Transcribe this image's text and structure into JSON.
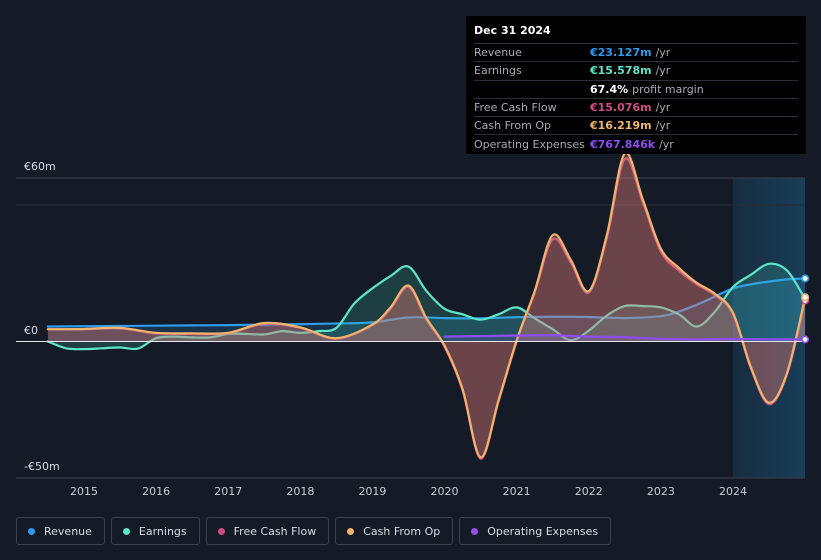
{
  "chart_data": {
    "type": "area",
    "title": "",
    "ylim": [
      -50,
      60
    ],
    "y_tick_labels": [
      "€60m",
      "€0",
      "-€50m"
    ],
    "x_tick_labels": [
      "2015",
      "2016",
      "2017",
      "2018",
      "2019",
      "2020",
      "2021",
      "2022",
      "2023",
      "2024"
    ],
    "xlim": [
      2014.5,
      2025.0
    ],
    "highlight_start": 2024.0,
    "series": [
      {
        "name": "Revenue",
        "color": "#2e9bef",
        "x": [
          2014.5,
          2015.0,
          2015.5,
          2016.0,
          2016.5,
          2017.0,
          2017.5,
          2018.0,
          2018.5,
          2019.0,
          2019.5,
          2020.0,
          2020.5,
          2021.0,
          2021.5,
          2022.0,
          2022.5,
          2023.0,
          2023.25,
          2023.5,
          2023.75,
          2024.0,
          2024.25,
          2024.5,
          2024.75,
          2025.0
        ],
        "values": [
          5.5,
          5.6,
          5.7,
          5.8,
          5.9,
          6.0,
          6.2,
          6.4,
          6.6,
          7.0,
          8.8,
          8.6,
          8.5,
          8.9,
          9.1,
          9.0,
          8.6,
          9.3,
          11.0,
          13.5,
          16.5,
          19.5,
          21.0,
          22.0,
          22.8,
          23.127
        ]
      },
      {
        "name": "Earnings",
        "color": "#5ee5c8",
        "x": [
          2014.5,
          2014.75,
          2015.0,
          2015.25,
          2015.5,
          2015.75,
          2016.0,
          2016.25,
          2016.5,
          2016.75,
          2017.0,
          2017.25,
          2017.5,
          2017.75,
          2018.0,
          2018.25,
          2018.5,
          2018.75,
          2019.0,
          2019.25,
          2019.5,
          2019.75,
          2020.0,
          2020.25,
          2020.5,
          2020.75,
          2021.0,
          2021.25,
          2021.5,
          2021.75,
          2022.0,
          2022.25,
          2022.5,
          2022.75,
          2023.0,
          2023.25,
          2023.5,
          2023.75,
          2024.0,
          2024.25,
          2024.5,
          2024.75,
          2025.0
        ],
        "values": [
          0,
          -2.5,
          -2.8,
          -2.5,
          -2.2,
          -2.6,
          1.2,
          1.8,
          1.5,
          1.5,
          2.8,
          2.8,
          2.6,
          3.8,
          3.2,
          3.8,
          5.0,
          14.0,
          19.5,
          24.0,
          27.5,
          18.5,
          12.0,
          10.0,
          8.0,
          10.0,
          12.5,
          8.5,
          4.5,
          0.5,
          4.0,
          9.5,
          13.0,
          13.0,
          12.5,
          10.0,
          5.5,
          11.0,
          20.0,
          24.5,
          28.5,
          26.0,
          15.578
        ]
      },
      {
        "name": "Free Cash Flow",
        "color": "#cf4d83",
        "x": [
          2014.5,
          2015.0,
          2015.5,
          2016.0,
          2016.5,
          2017.0,
          2017.5,
          2018.0,
          2018.5,
          2019.0,
          2019.25,
          2019.5,
          2019.75,
          2020.0,
          2020.25,
          2020.5,
          2020.75,
          2021.0,
          2021.25,
          2021.5,
          2021.75,
          2022.0,
          2022.25,
          2022.5,
          2022.75,
          2023.0,
          2023.25,
          2023.5,
          2023.75,
          2024.0,
          2024.25,
          2024.5,
          2024.75,
          2025.0
        ],
        "values": [
          4.5,
          4.5,
          4.8,
          3.0,
          2.8,
          3.0,
          6.5,
          5.0,
          1.0,
          6.0,
          12.0,
          20.0,
          8.0,
          -2.0,
          -18.0,
          -43.0,
          -22.0,
          0,
          18.0,
          37.5,
          29.0,
          18.0,
          38.0,
          67.0,
          51.0,
          33.0,
          26.0,
          21.0,
          17.0,
          10.0,
          -10.0,
          -23.0,
          -12.0,
          15.076
        ]
      },
      {
        "name": "Cash From Op",
        "color": "#f1b46c",
        "x": [
          2014.5,
          2015.0,
          2015.5,
          2016.0,
          2016.5,
          2017.0,
          2017.5,
          2018.0,
          2018.5,
          2019.0,
          2019.25,
          2019.5,
          2019.75,
          2020.0,
          2020.25,
          2020.5,
          2020.75,
          2021.0,
          2021.25,
          2021.5,
          2021.75,
          2022.0,
          2022.25,
          2022.5,
          2022.75,
          2023.0,
          2023.25,
          2023.5,
          2023.75,
          2024.0,
          2024.25,
          2024.5,
          2024.75,
          2025.0
        ],
        "values": [
          4.5,
          4.6,
          5.0,
          3.2,
          3.0,
          3.2,
          6.8,
          5.2,
          1.2,
          6.2,
          12.5,
          20.5,
          8.5,
          -1.5,
          -17.5,
          -42.5,
          -21.5,
          0.5,
          18.5,
          39.0,
          30.0,
          18.5,
          39.0,
          69.0,
          52.0,
          34.0,
          27.0,
          21.5,
          17.5,
          10.5,
          -9.5,
          -22.5,
          -11.5,
          16.219
        ]
      },
      {
        "name": "Operating Expenses",
        "color": "#8f4ef0",
        "x": [
          2020.0,
          2020.5,
          2021.0,
          2021.5,
          2022.0,
          2022.5,
          2023.0,
          2023.5,
          2024.0,
          2024.5,
          2025.0
        ],
        "values": [
          1.8,
          2.0,
          2.2,
          2.3,
          1.8,
          1.6,
          1.0,
          0.8,
          0.9,
          0.8,
          0.767846
        ]
      }
    ]
  },
  "tooltip": {
    "date": "Dec 31 2024",
    "rows": [
      {
        "label": "Revenue",
        "value": "€23.127m",
        "unit": "/yr",
        "color": "#2e9bef"
      },
      {
        "label": "Earnings",
        "value": "€15.578m",
        "unit": "/yr",
        "color": "#5ee5c8"
      },
      {
        "label": "",
        "value": "67.4%",
        "unit": "profit margin",
        "color": "#ffffff"
      },
      {
        "label": "Free Cash Flow",
        "value": "€15.076m",
        "unit": "/yr",
        "color": "#cf4d83"
      },
      {
        "label": "Cash From Op",
        "value": "€16.219m",
        "unit": "/yr",
        "color": "#f1b46c"
      },
      {
        "label": "Operating Expenses",
        "value": "€767.846k",
        "unit": "/yr",
        "color": "#8f4ef0"
      }
    ]
  },
  "legend": [
    {
      "label": "Revenue",
      "color": "#2e9bef"
    },
    {
      "label": "Earnings",
      "color": "#5ee5c8"
    },
    {
      "label": "Free Cash Flow",
      "color": "#cf4d83"
    },
    {
      "label": "Cash From Op",
      "color": "#f1b46c"
    },
    {
      "label": "Operating Expenses",
      "color": "#8f4ef0"
    }
  ]
}
